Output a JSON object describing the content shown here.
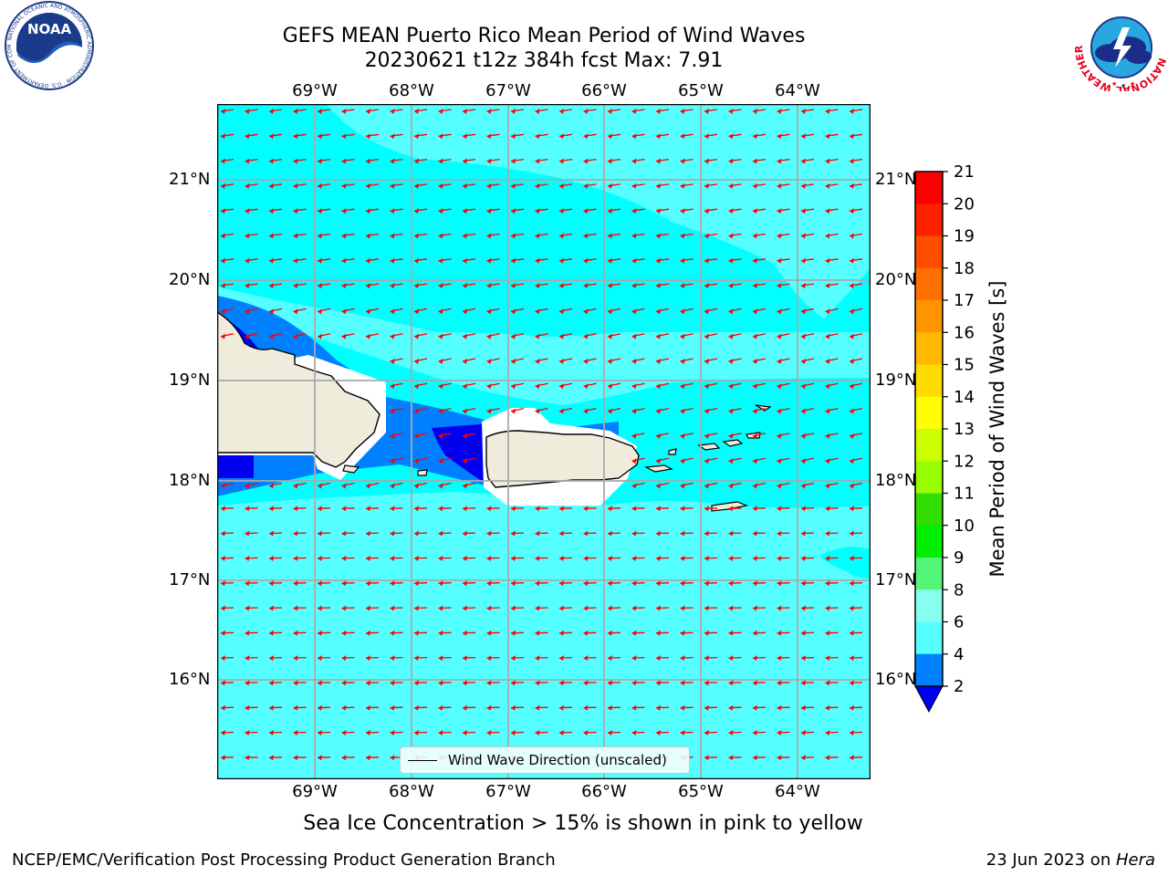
{
  "title_line1": "GEFS MEAN Puerto Rico Mean Period of Wind Waves",
  "title_line2": "20230621 t12z 384h fcst   Max: 7.91",
  "lon_labels": [
    "69°W",
    "68°W",
    "67°W",
    "66°W",
    "65°W",
    "64°W"
  ],
  "lat_labels": [
    "21°N",
    "20°N",
    "19°N",
    "18°N",
    "17°N",
    "16°N"
  ],
  "legend_label": "Wind Wave Direction (unscaled)",
  "colorbar": {
    "label": "Mean Period of Wind Waves [s]",
    "ticks": [
      "21",
      "20",
      "19",
      "18",
      "17",
      "16",
      "15",
      "14",
      "13",
      "12",
      "11",
      "10",
      "9",
      "8",
      "6",
      "4",
      "2"
    ],
    "colors": [
      "#ff0000",
      "#ff2000",
      "#ff4d00",
      "#ff7000",
      "#ff9400",
      "#ffb800",
      "#ffdc00",
      "#ffff00",
      "#ccff00",
      "#99ff00",
      "#33dd00",
      "#00ee00",
      "#55f57a",
      "#88ffee",
      "#55ffff",
      "#00ffff",
      "#0080ff"
    ],
    "under_color": "#0000ee"
  },
  "chart_data": {
    "type": "heatmap",
    "variable": "Mean Period of Wind Waves [s]",
    "max_value": 7.91,
    "lon_range": [
      -70.0,
      -63.3
    ],
    "lat_range": [
      15.0,
      21.75
    ],
    "levels": [
      2,
      4,
      6,
      8,
      9,
      10,
      11,
      12,
      13,
      14,
      15,
      16,
      17,
      18,
      19,
      20,
      21
    ],
    "wind_wave_direction": "arrows pointing west / west-southwest"
  },
  "subtitle": "Sea Ice Concentration > 15% is shown in pink to yellow",
  "footer_left": "NCEP/EMC/Verification Post Processing Product Generation Branch",
  "footer_date": "23 Jun 2023 on ",
  "footer_machine": "Hera",
  "logos": {
    "noaa_text": "NOAA",
    "noaa_ring": "NATIONAL OCEANIC AND ATMOSPHERIC ADMINISTRATION · U.S. DEPARTMENT OF COMMERCE",
    "nws_ring": "NATIONAL WEATHER SERVICE"
  },
  "colors": {
    "ocean_base": "#00ffff",
    "ocean_light": "#55ffff",
    "wave_mid": "#0080ff",
    "wave_low": "#0000ee",
    "land": "#f0ecdc",
    "arrow": "#ff0000"
  }
}
